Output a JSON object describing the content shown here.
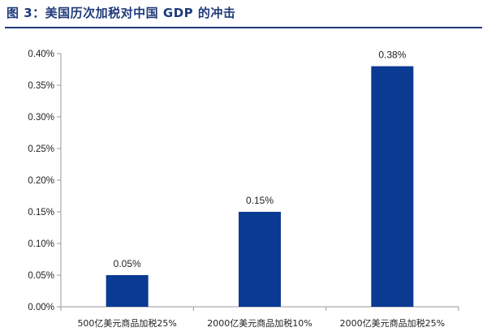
{
  "header": {
    "figure_title": "图 3：美国历次加税对中国 GDP 的冲击"
  },
  "colors": {
    "bar": "#0b3a92",
    "title": "#1f3a7a",
    "axis": "#9a9a9a"
  },
  "chart_data": {
    "type": "bar",
    "title": "图 3：美国历次加税对中国 GDP 的冲击",
    "xlabel": "",
    "ylabel": "",
    "categories": [
      "500亿美元商品加税25%",
      "2000亿美元商品加税10%",
      "2000亿美元商品加税25%"
    ],
    "values": [
      0.05,
      0.15,
      0.38
    ],
    "value_labels": [
      "0.05%",
      "0.15%",
      "0.38%"
    ],
    "ylim": [
      0,
      0.4
    ],
    "yticks": [
      0.0,
      0.05,
      0.1,
      0.15,
      0.2,
      0.25,
      0.3,
      0.35,
      0.4
    ],
    "ytick_labels": [
      "0.00%",
      "0.05%",
      "0.10%",
      "0.15%",
      "0.20%",
      "0.25%",
      "0.30%",
      "0.35%",
      "0.40%"
    ],
    "grid": false,
    "legend": "none"
  }
}
